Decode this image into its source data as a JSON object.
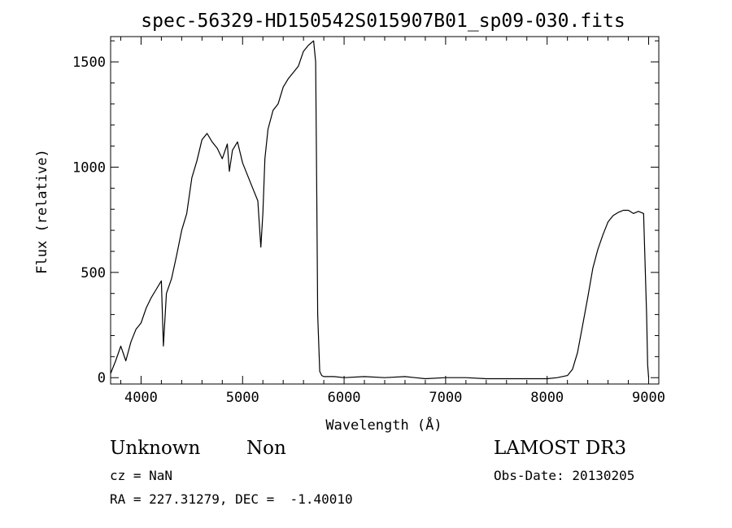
{
  "chart_data": {
    "type": "line",
    "title": "spec-56329-HD150542S015907B01_sp09-030.fits",
    "xlabel": "Wavelength (Å)",
    "ylabel": "Flux (relative)",
    "xlim": [
      3700,
      9100
    ],
    "ylim": [
      -30,
      1620
    ],
    "x_ticks": [
      4000,
      5000,
      6000,
      7000,
      8000,
      9000
    ],
    "y_ticks": [
      0,
      500,
      1000,
      1500
    ],
    "grid": false,
    "series": [
      {
        "x": [
          3700,
          3750,
          3800,
          3850,
          3900,
          3950,
          4000,
          4050,
          4100,
          4150,
          4200,
          4220,
          4250,
          4300,
          4350,
          4400,
          4450,
          4500,
          4550,
          4600,
          4650,
          4700,
          4750,
          4800,
          4850,
          4870,
          4900,
          4950,
          5000,
          5050,
          5100,
          5150,
          5180,
          5200,
          5220,
          5250,
          5300,
          5350,
          5400,
          5450,
          5500,
          5550,
          5600,
          5650,
          5700,
          5720,
          5730,
          5740,
          5760,
          5780,
          5800,
          5900,
          6000,
          6200,
          6400,
          6600,
          6800,
          7000,
          7200,
          7400,
          7600,
          7800,
          8000,
          8100,
          8200,
          8250,
          8300,
          8350,
          8400,
          8450,
          8500,
          8550,
          8600,
          8650,
          8700,
          8750,
          8800,
          8850,
          8900,
          8950,
          8980,
          8990,
          9000
        ],
        "y": [
          20,
          80,
          150,
          80,
          170,
          230,
          260,
          330,
          380,
          420,
          460,
          150,
          400,
          470,
          580,
          700,
          780,
          950,
          1030,
          1130,
          1160,
          1120,
          1090,
          1040,
          1110,
          980,
          1080,
          1120,
          1020,
          960,
          900,
          840,
          620,
          780,
          1040,
          1180,
          1270,
          1300,
          1380,
          1420,
          1450,
          1480,
          1550,
          1580,
          1600,
          1500,
          900,
          300,
          30,
          10,
          5,
          5,
          0,
          5,
          0,
          5,
          -5,
          0,
          0,
          -5,
          -5,
          -5,
          -5,
          0,
          10,
          40,
          120,
          250,
          380,
          520,
          610,
          680,
          740,
          770,
          785,
          795,
          795,
          780,
          790,
          780,
          300,
          60,
          0
        ]
      }
    ]
  },
  "info": {
    "object_class": "Unknown",
    "object_subclass": "Non",
    "survey": "LAMOST DR3",
    "cz_line": "cz = NaN",
    "obs_date_line": "Obs-Date: 20130205",
    "coords_line": "RA = 227.31279, DEC =  -1.40010"
  }
}
